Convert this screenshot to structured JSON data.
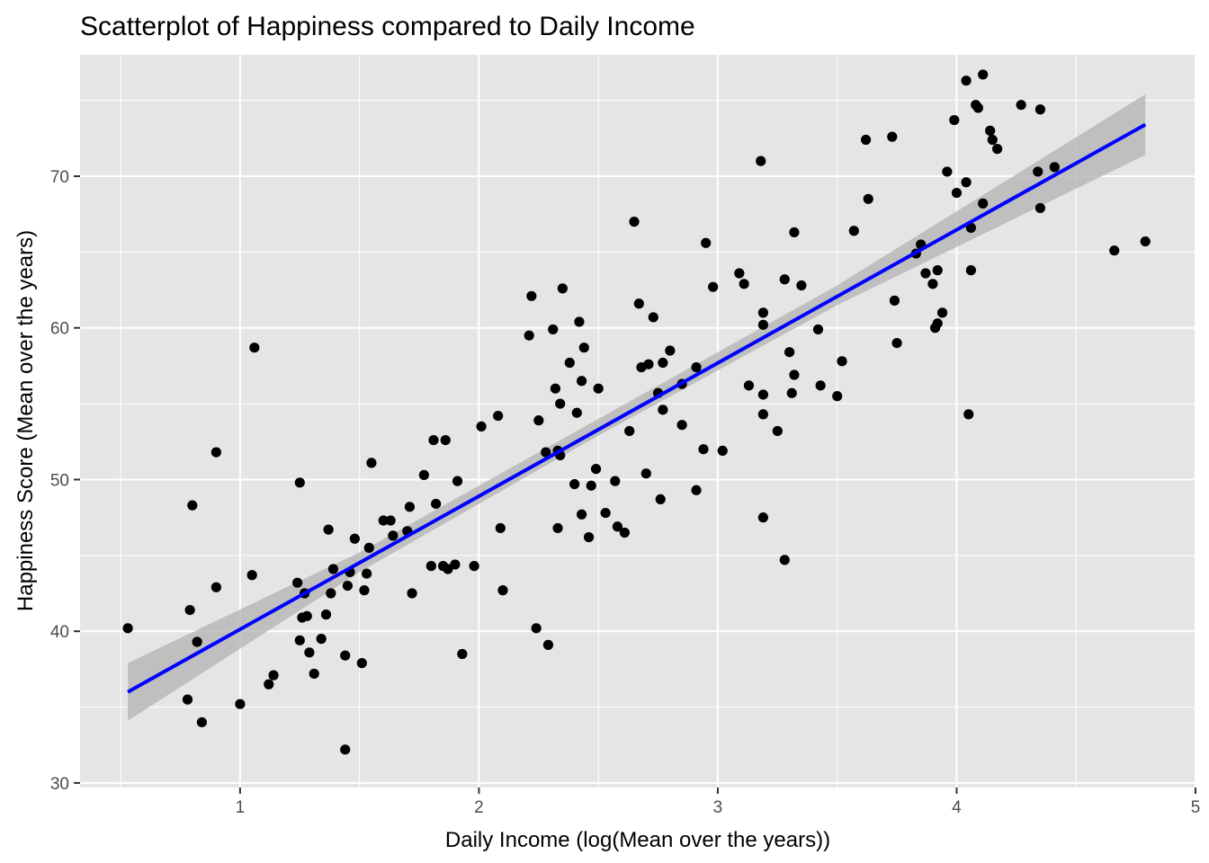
{
  "chart_data": {
    "type": "scatter",
    "title": "Scatterplot of Happiness compared to Daily Income",
    "xlabel": "Daily Income (log(Mean over the years))",
    "ylabel": "Happiness Score (Mean over the years)",
    "xlim": [
      0.33,
      5.0
    ],
    "ylim": [
      29.7,
      78.0
    ],
    "x_ticks": [
      "1",
      "2",
      "3",
      "4",
      "5"
    ],
    "y_ticks": [
      "30",
      "40",
      "50",
      "60",
      "70"
    ],
    "grid": true,
    "legend": "none",
    "colors": {
      "panel": "#e5e5e5",
      "grid": "#ffffff",
      "points": "#000000",
      "fit_line": "#0000ff",
      "confidence_band": "#b2b2b2"
    },
    "series": [
      {
        "type": "scatter",
        "points": [
          [
            0.53,
            40.2
          ],
          [
            0.78,
            35.5
          ],
          [
            0.79,
            41.4
          ],
          [
            0.8,
            48.3
          ],
          [
            0.82,
            39.3
          ],
          [
            0.84,
            34.0
          ],
          [
            0.9,
            51.8
          ],
          [
            0.9,
            42.9
          ],
          [
            1.0,
            35.2
          ],
          [
            1.05,
            43.7
          ],
          [
            1.06,
            58.7
          ],
          [
            1.12,
            36.5
          ],
          [
            1.14,
            37.1
          ],
          [
            1.24,
            43.2
          ],
          [
            1.25,
            49.8
          ],
          [
            1.25,
            39.4
          ],
          [
            1.26,
            40.9
          ],
          [
            1.27,
            42.5
          ],
          [
            1.28,
            41.0
          ],
          [
            1.29,
            38.6
          ],
          [
            1.31,
            37.2
          ],
          [
            1.34,
            39.5
          ],
          [
            1.36,
            41.1
          ],
          [
            1.37,
            46.7
          ],
          [
            1.38,
            42.5
          ],
          [
            1.39,
            44.1
          ],
          [
            1.44,
            38.4
          ],
          [
            1.44,
            32.2
          ],
          [
            1.45,
            43.0
          ],
          [
            1.46,
            43.9
          ],
          [
            1.48,
            46.1
          ],
          [
            1.51,
            37.9
          ],
          [
            1.52,
            42.7
          ],
          [
            1.53,
            43.8
          ],
          [
            1.54,
            45.5
          ],
          [
            1.55,
            51.1
          ],
          [
            1.6,
            47.3
          ],
          [
            1.63,
            47.3
          ],
          [
            1.64,
            46.3
          ],
          [
            1.7,
            46.6
          ],
          [
            1.71,
            48.2
          ],
          [
            1.72,
            42.5
          ],
          [
            1.77,
            50.3
          ],
          [
            1.8,
            44.3
          ],
          [
            1.81,
            52.6
          ],
          [
            1.82,
            48.4
          ],
          [
            1.85,
            44.3
          ],
          [
            1.86,
            52.6
          ],
          [
            1.87,
            44.1
          ],
          [
            1.9,
            44.4
          ],
          [
            1.91,
            49.9
          ],
          [
            1.93,
            38.5
          ],
          [
            1.98,
            44.3
          ],
          [
            2.01,
            53.5
          ],
          [
            2.08,
            54.2
          ],
          [
            2.09,
            46.8
          ],
          [
            2.1,
            42.7
          ],
          [
            2.21,
            59.5
          ],
          [
            2.22,
            62.1
          ],
          [
            2.24,
            40.2
          ],
          [
            2.25,
            53.9
          ],
          [
            2.28,
            51.8
          ],
          [
            2.29,
            39.1
          ],
          [
            2.31,
            59.9
          ],
          [
            2.32,
            56.0
          ],
          [
            2.33,
            46.8
          ],
          [
            2.33,
            51.9
          ],
          [
            2.34,
            51.6
          ],
          [
            2.34,
            55.0
          ],
          [
            2.35,
            62.6
          ],
          [
            2.38,
            57.7
          ],
          [
            2.4,
            49.7
          ],
          [
            2.41,
            54.4
          ],
          [
            2.42,
            60.4
          ],
          [
            2.43,
            56.5
          ],
          [
            2.43,
            47.7
          ],
          [
            2.44,
            58.7
          ],
          [
            2.46,
            46.2
          ],
          [
            2.47,
            49.6
          ],
          [
            2.49,
            50.7
          ],
          [
            2.5,
            56.0
          ],
          [
            2.53,
            47.8
          ],
          [
            2.57,
            49.9
          ],
          [
            2.58,
            46.9
          ],
          [
            2.61,
            46.5
          ],
          [
            2.63,
            53.2
          ],
          [
            2.65,
            67.0
          ],
          [
            2.67,
            61.6
          ],
          [
            2.68,
            57.4
          ],
          [
            2.7,
            50.4
          ],
          [
            2.71,
            57.6
          ],
          [
            2.73,
            60.7
          ],
          [
            2.75,
            55.7
          ],
          [
            2.76,
            48.7
          ],
          [
            2.77,
            54.6
          ],
          [
            2.77,
            57.7
          ],
          [
            2.8,
            58.5
          ],
          [
            2.85,
            53.6
          ],
          [
            2.85,
            56.3
          ],
          [
            2.91,
            57.4
          ],
          [
            2.91,
            49.3
          ],
          [
            2.94,
            52.0
          ],
          [
            2.95,
            65.6
          ],
          [
            2.98,
            62.7
          ],
          [
            3.02,
            51.9
          ],
          [
            3.09,
            63.6
          ],
          [
            3.11,
            62.9
          ],
          [
            3.13,
            56.2
          ],
          [
            3.18,
            71.0
          ],
          [
            3.19,
            61.0
          ],
          [
            3.19,
            60.2
          ],
          [
            3.19,
            55.6
          ],
          [
            3.19,
            54.3
          ],
          [
            3.19,
            47.5
          ],
          [
            3.25,
            53.2
          ],
          [
            3.28,
            44.7
          ],
          [
            3.28,
            63.2
          ],
          [
            3.3,
            58.4
          ],
          [
            3.31,
            55.7
          ],
          [
            3.32,
            66.3
          ],
          [
            3.32,
            56.9
          ],
          [
            3.35,
            62.8
          ],
          [
            3.42,
            59.9
          ],
          [
            3.43,
            56.2
          ],
          [
            3.5,
            55.5
          ],
          [
            3.52,
            57.8
          ],
          [
            3.57,
            66.4
          ],
          [
            3.62,
            72.4
          ],
          [
            3.63,
            68.5
          ],
          [
            3.73,
            72.6
          ],
          [
            3.74,
            61.8
          ],
          [
            3.75,
            59.0
          ],
          [
            3.83,
            64.9
          ],
          [
            3.85,
            65.5
          ],
          [
            3.87,
            63.6
          ],
          [
            3.9,
            62.9
          ],
          [
            3.91,
            60.0
          ],
          [
            3.92,
            63.8
          ],
          [
            3.92,
            60.3
          ],
          [
            3.94,
            61.0
          ],
          [
            3.96,
            70.3
          ],
          [
            3.99,
            73.7
          ],
          [
            4.0,
            68.9
          ],
          [
            4.04,
            76.3
          ],
          [
            4.04,
            69.6
          ],
          [
            4.05,
            54.3
          ],
          [
            4.06,
            66.6
          ],
          [
            4.06,
            63.8
          ],
          [
            4.08,
            74.7
          ],
          [
            4.09,
            74.5
          ],
          [
            4.11,
            76.7
          ],
          [
            4.11,
            68.2
          ],
          [
            4.14,
            73.0
          ],
          [
            4.15,
            72.4
          ],
          [
            4.17,
            71.8
          ],
          [
            4.27,
            74.7
          ],
          [
            4.34,
            70.3
          ],
          [
            4.35,
            67.9
          ],
          [
            4.35,
            74.4
          ],
          [
            4.41,
            70.6
          ],
          [
            4.66,
            65.1
          ],
          [
            4.79,
            65.7
          ]
        ]
      },
      {
        "type": "line",
        "x": [
          0.53,
          4.79
        ],
        "y": [
          36.0,
          73.4
        ]
      },
      {
        "type": "area",
        "x": [
          0.53,
          1.5,
          2.5,
          3.5,
          4.79
        ],
        "upper": [
          37.9,
          45.2,
          54.0,
          62.8,
          75.4
        ],
        "lower": [
          34.1,
          43.9,
          52.9,
          61.5,
          71.4
        ]
      }
    ]
  }
}
